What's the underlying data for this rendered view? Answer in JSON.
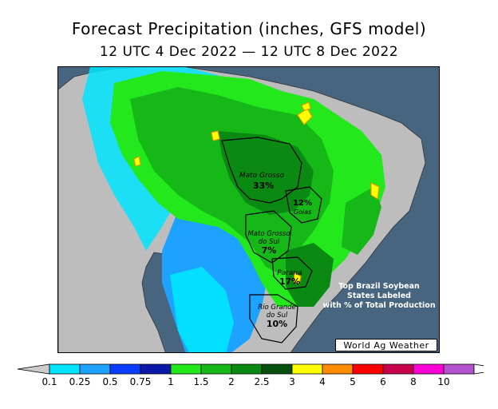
{
  "title": "Forecast Precipitation (inches, GFS model)",
  "subtitle": "12 UTC 4 Dec 2022 — 12 UTC 8 Dec 2022",
  "states": [
    {
      "name": "Mato Grosso",
      "pct": "33%"
    },
    {
      "name": "Goias",
      "pct": "12%"
    },
    {
      "name": "Mato Grosso do Sul",
      "pct": "7%"
    },
    {
      "name": "Parana",
      "pct": "17%"
    },
    {
      "name": "Rio Grande do Sul",
      "pct": "10%"
    }
  ],
  "note": [
    "Top Brazil Soybean",
    "States Labeled",
    "with % of Total Production"
  ],
  "credit": "World Ag Weather",
  "legend": {
    "ticks": [
      "0.1",
      "0.25",
      "0.5",
      "0.75",
      "1",
      "1.5",
      "2",
      "2.5",
      "3",
      "4",
      "5",
      "6",
      "8",
      "10"
    ],
    "colors": [
      "#00e5ff",
      "#1ea2ff",
      "#0a3cff",
      "#0a18a8",
      "#22e81c",
      "#16b818",
      "#0a8a12",
      "#064f0c",
      "#ffff00",
      "#ff8c00",
      "#ff0000",
      "#c8004b",
      "#ff00d7",
      "#b452cd"
    ],
    "low_color": "#cccccc",
    "high_color": "#ffffff"
  },
  "colors": {
    "ocean": "#47657f",
    "land_dry": "#bdbdbd"
  }
}
